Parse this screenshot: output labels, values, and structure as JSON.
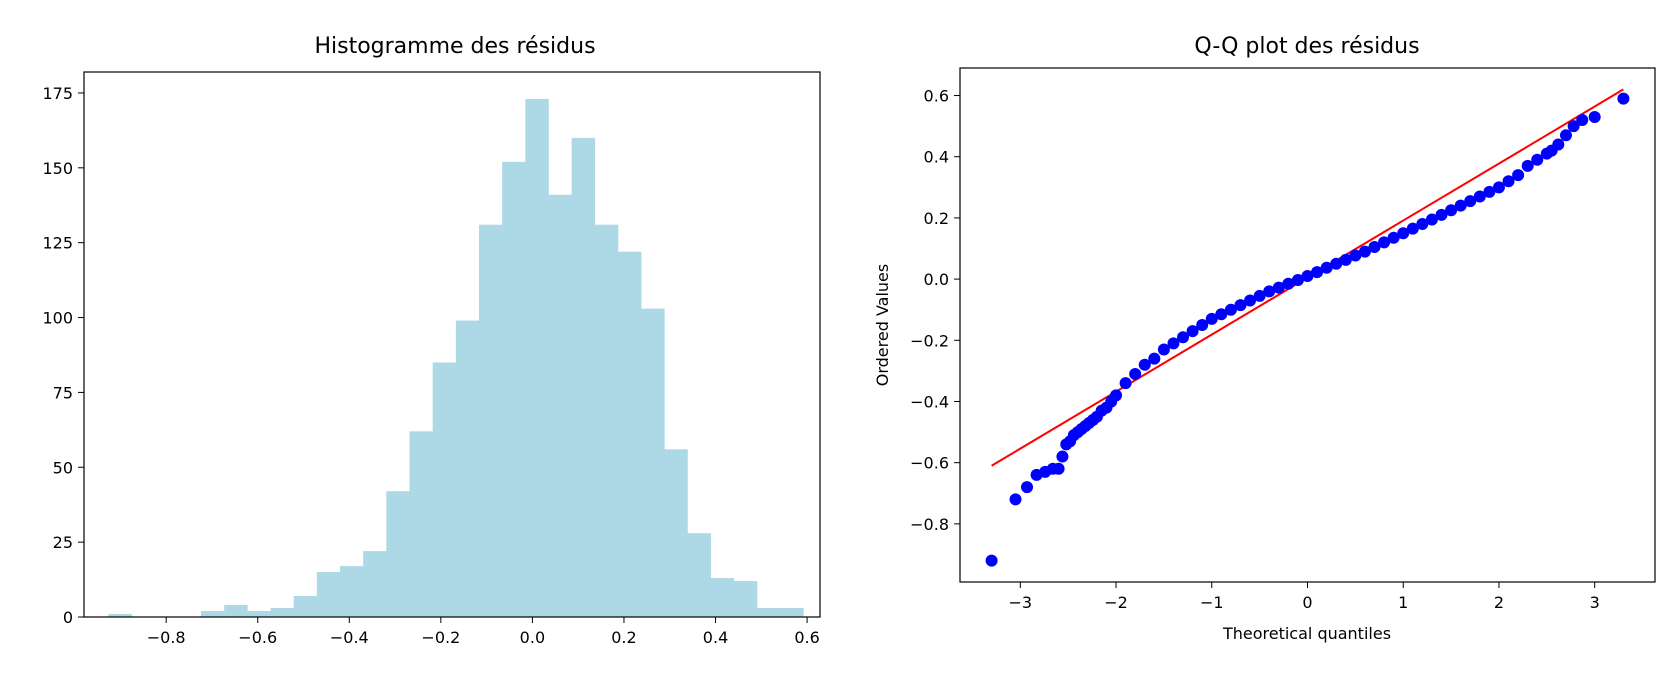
{
  "chart_data": [
    {
      "type": "bar",
      "title": "Histogramme des résidus",
      "xlabel": "",
      "ylabel": "",
      "xlim": [
        -0.9795,
        0.6282
      ],
      "ylim": [
        0,
        182
      ],
      "xticks": [
        -0.8,
        -0.6,
        -0.4,
        -0.2,
        0.0,
        0.2,
        0.4,
        0.6
      ],
      "xtick_labels": [
        "−0.8",
        "−0.6",
        "−0.4",
        "−0.2",
        "0.0",
        "0.2",
        "0.4",
        "0.6"
      ],
      "yticks": [
        0,
        25,
        50,
        75,
        100,
        125,
        150,
        175
      ],
      "ytick_labels": [
        "0",
        "25",
        "50",
        "75",
        "100",
        "125",
        "150",
        "175"
      ],
      "bin_start": -0.9263,
      "bin_width": 0.0506,
      "values": [
        1,
        0,
        0,
        0,
        2,
        4,
        2,
        3,
        7,
        15,
        17,
        22,
        42,
        62,
        85,
        99,
        131,
        152,
        173,
        141,
        160,
        131,
        122,
        103,
        56,
        28,
        13,
        12,
        3,
        3
      ],
      "color": "#add8e6",
      "grid": false,
      "legend": "none"
    },
    {
      "type": "scatter",
      "title": "Q-Q plot des résidus",
      "xlabel": "Theoretical quantiles",
      "ylabel": "Ordered Values",
      "xlim": [
        -3.63,
        3.63
      ],
      "ylim": [
        -0.99,
        0.69
      ],
      "xticks": [
        -3,
        -2,
        -1,
        0,
        1,
        2,
        3
      ],
      "xtick_labels": [
        "−3",
        "−2",
        "−1",
        "0",
        "1",
        "2",
        "3"
      ],
      "yticks": [
        -0.8,
        -0.6,
        -0.4,
        -0.2,
        0.0,
        0.2,
        0.4,
        0.6
      ],
      "ytick_labels": [
        "−0.8",
        "−0.6",
        "−0.4",
        "−0.2",
        "0.0",
        "0.2",
        "0.4",
        "0.6"
      ],
      "points": {
        "x": [
          -3.3,
          -3.05,
          -2.93,
          -2.83,
          -2.74,
          -2.66,
          -2.6,
          -2.56,
          -2.52,
          -2.48,
          -2.44,
          -2.4,
          -2.36,
          -2.32,
          -2.28,
          -2.24,
          -2.2,
          -2.15,
          -2.1,
          -2.05,
          -2.0,
          -1.9,
          -1.8,
          -1.7,
          -1.6,
          -1.5,
          -1.4,
          -1.3,
          -1.2,
          -1.1,
          -1.0,
          -0.9,
          -0.8,
          -0.7,
          -0.6,
          -0.5,
          -0.4,
          -0.3,
          -0.2,
          -0.1,
          0.0,
          0.1,
          0.2,
          0.3,
          0.4,
          0.5,
          0.6,
          0.7,
          0.8,
          0.9,
          1.0,
          1.1,
          1.2,
          1.3,
          1.4,
          1.5,
          1.6,
          1.7,
          1.8,
          1.9,
          2.0,
          2.1,
          2.2,
          2.3,
          2.4,
          2.5,
          2.55,
          2.62,
          2.7,
          2.78,
          2.87,
          3.0,
          3.3
        ],
        "y": [
          -0.92,
          -0.72,
          -0.68,
          -0.64,
          -0.63,
          -0.62,
          -0.62,
          -0.58,
          -0.54,
          -0.53,
          -0.51,
          -0.5,
          -0.49,
          -0.48,
          -0.47,
          -0.46,
          -0.45,
          -0.43,
          -0.42,
          -0.4,
          -0.38,
          -0.34,
          -0.31,
          -0.28,
          -0.26,
          -0.23,
          -0.21,
          -0.19,
          -0.17,
          -0.15,
          -0.13,
          -0.115,
          -0.1,
          -0.085,
          -0.07,
          -0.055,
          -0.04,
          -0.028,
          -0.015,
          -0.003,
          0.01,
          0.023,
          0.037,
          0.05,
          0.063,
          0.077,
          0.09,
          0.105,
          0.12,
          0.135,
          0.15,
          0.165,
          0.18,
          0.195,
          0.21,
          0.225,
          0.24,
          0.255,
          0.27,
          0.285,
          0.3,
          0.32,
          0.34,
          0.37,
          0.39,
          0.41,
          0.42,
          0.44,
          0.47,
          0.5,
          0.52,
          0.53,
          0.59
        ],
        "color": "#0000ff"
      },
      "fit_line": {
        "x": [
          -3.3,
          3.3
        ],
        "y": [
          -0.61,
          0.62
        ],
        "color": "#ff0000"
      },
      "grid": false,
      "legend": "none"
    }
  ]
}
